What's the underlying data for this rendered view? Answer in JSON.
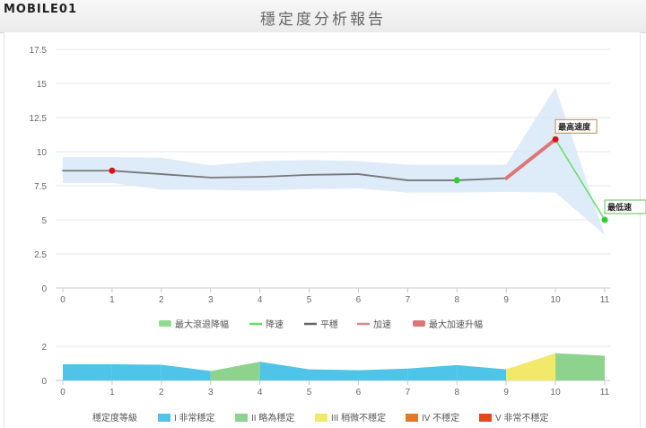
{
  "header": {
    "logo": "MOBILE01",
    "title": "穩定度分析報告"
  },
  "chart_data": [
    {
      "type": "line",
      "x": [
        0,
        1,
        2,
        3,
        4,
        5,
        6,
        7,
        8,
        9,
        10,
        11
      ],
      "xlim": [
        0,
        11
      ],
      "ylim": [
        0,
        17.5
      ],
      "yticks": [
        "0",
        "2.5",
        "5",
        "7.5",
        "10",
        "12.5",
        "15",
        "17.5"
      ],
      "xticks": [
        "0",
        "1",
        "2",
        "3",
        "4",
        "5",
        "6",
        "7",
        "8",
        "9",
        "10",
        "11"
      ],
      "series": [
        {
          "name": "平穩",
          "values": [
            8.6,
            8.6,
            8.35,
            8.1,
            8.15,
            8.3,
            8.35,
            7.9,
            7.9,
            8.05,
            10.9,
            5.0
          ],
          "color": "#777777"
        }
      ],
      "band_upper": [
        9.6,
        9.6,
        9.55,
        9.0,
        9.3,
        9.4,
        9.3,
        9.05,
        9.05,
        9.05,
        14.7,
        3.9
      ],
      "band_lower": [
        7.7,
        7.7,
        7.2,
        7.2,
        7.15,
        7.25,
        7.3,
        7.0,
        7.0,
        7.05,
        7.0,
        3.9
      ],
      "markers": [
        {
          "x": 1,
          "y": 8.6,
          "color": "#dd1111"
        },
        {
          "x": 8,
          "y": 7.9,
          "color": "#33cc33"
        },
        {
          "x": 10,
          "y": 10.9,
          "color": "#dd1111"
        },
        {
          "x": 11,
          "y": 5.0,
          "color": "#33cc33"
        }
      ],
      "segments": [
        {
          "name": "最大加速升幅",
          "from": 9,
          "to": 10,
          "color": "#dd7777"
        },
        {
          "name": "降速",
          "from": 10,
          "to": 11,
          "color": "#66dd66"
        }
      ],
      "annotations": [
        {
          "x": 10,
          "y": 10.9,
          "text": "最高速度"
        },
        {
          "x": 11,
          "y": 5.0,
          "text": "最低速"
        }
      ],
      "legend": [
        {
          "label": "最大滾退降幅",
          "color": "#8fdc8f",
          "kind": "bar"
        },
        {
          "label": "降速",
          "color": "#66dd66",
          "kind": "line"
        },
        {
          "label": "平穩",
          "color": "#666666",
          "kind": "line"
        },
        {
          "label": "加速",
          "color": "#dd8888",
          "kind": "line"
        },
        {
          "label": "最大加速升幅",
          "color": "#dd7777",
          "kind": "bar"
        }
      ],
      "legend_position": "bottom",
      "grid": true
    },
    {
      "type": "area",
      "x": [
        0,
        1,
        2,
        3,
        4,
        5,
        6,
        7,
        8,
        9,
        10,
        11
      ],
      "xlim": [
        0,
        11
      ],
      "ylim": [
        0,
        2
      ],
      "yticks": [
        "0",
        "2"
      ],
      "xticks": [
        "0",
        "1",
        "2",
        "3",
        "4",
        "5",
        "6",
        "7",
        "8",
        "9",
        "10",
        "11"
      ],
      "values": [
        0.95,
        0.95,
        0.92,
        0.55,
        1.1,
        0.65,
        0.6,
        0.7,
        0.9,
        0.65,
        1.6,
        1.45
      ],
      "segment_classes": [
        "I",
        "I",
        "I",
        "II",
        "I",
        "I",
        "I",
        "I",
        "I",
        "III",
        "II"
      ],
      "legend_title": "穩定度等級",
      "legend": [
        {
          "key": "I",
          "label": "I 非常穩定",
          "color": "#4fc3e8"
        },
        {
          "key": "II",
          "label": "II 略為穩定",
          "color": "#8dd38d"
        },
        {
          "key": "III",
          "label": "III 稍微不穩定",
          "color": "#f2e86a"
        },
        {
          "key": "IV",
          "label": "IV 不穩定",
          "color": "#e07a2a"
        },
        {
          "key": "V",
          "label": "V 非常不穩定",
          "color": "#e04a1e"
        }
      ],
      "legend_position": "bottom",
      "grid": true
    }
  ]
}
